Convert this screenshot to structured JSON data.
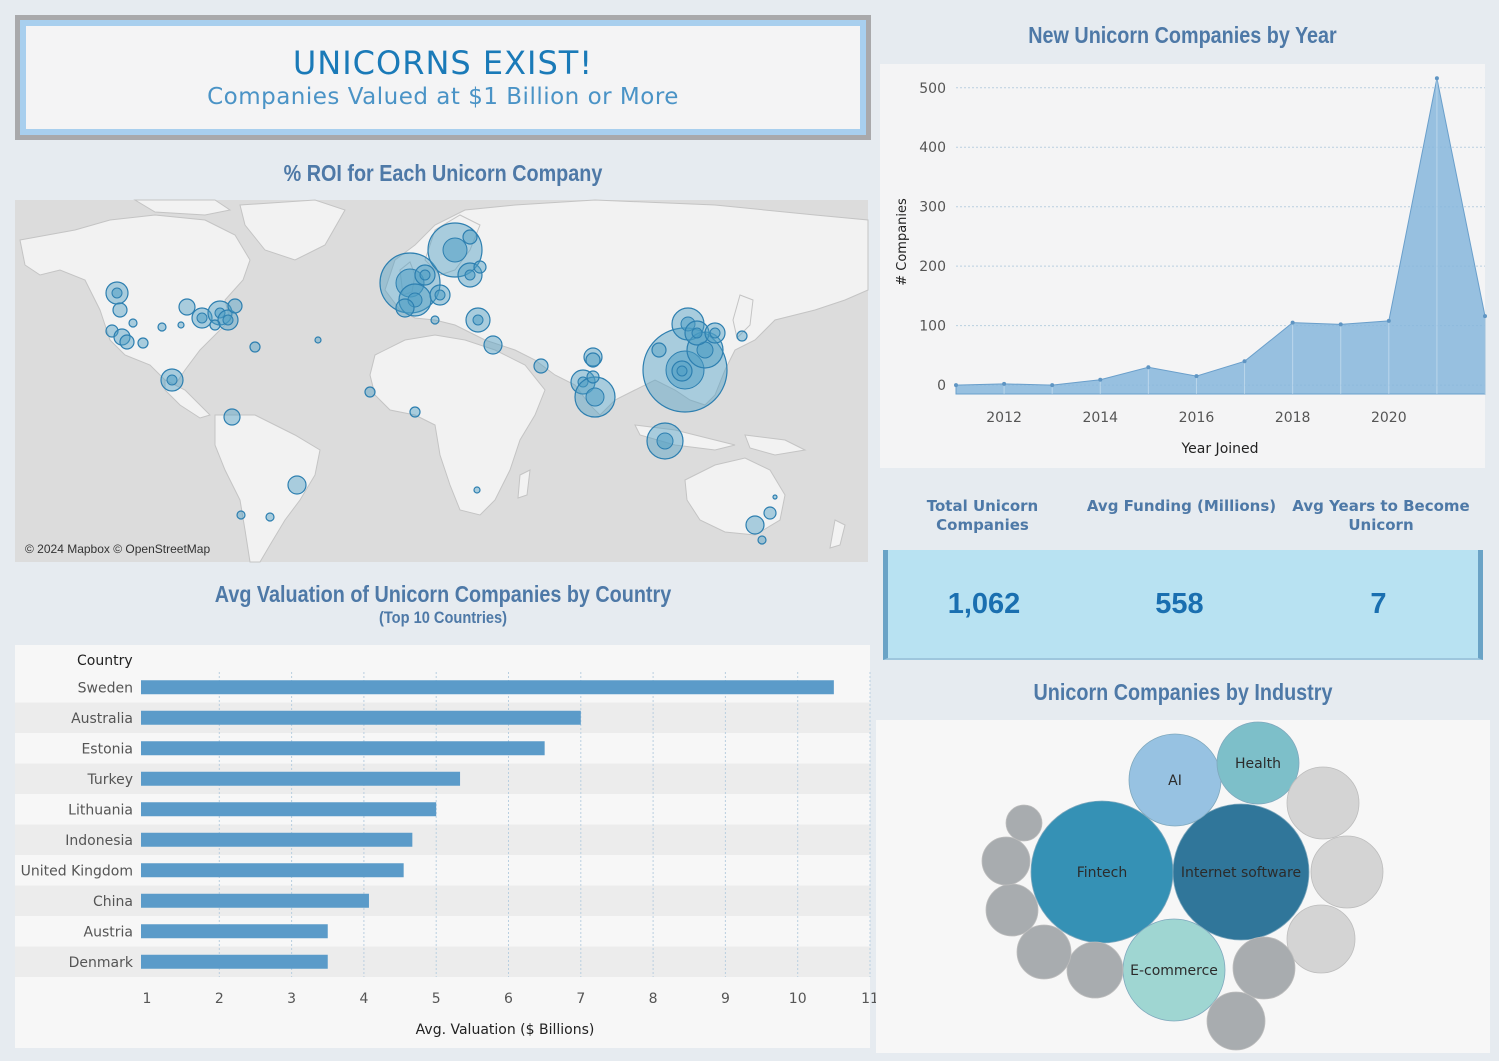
{
  "header": {
    "title": "UNICORNS EXIST!",
    "subtitle": "Companies Valued at $1 Billion or More"
  },
  "map": {
    "title": "% ROI for  Each Unicorn Company",
    "credit": "© 2024 Mapbox © OpenStreetMap"
  },
  "bar": {
    "title": "Avg Valuation of Unicorn Companies by Country",
    "subtitle": "(Top 10 Countries)"
  },
  "area": {
    "title": "New Unicorn Companies by Year"
  },
  "kpis": {
    "total_label": "Total Unicorn Companies",
    "total_value": "1,062",
    "funding_label": "Avg Funding (Millions)",
    "funding_value": "558",
    "years_label": "Avg Years to Become Unicorn",
    "years_value": "7"
  },
  "bubble": {
    "title": "Unicorn Companies by Industry"
  },
  "chart_data": [
    {
      "type": "bar",
      "orientation": "horizontal",
      "column_header": "Country",
      "categories": [
        "Sweden",
        "Australia",
        "Estonia",
        "Turkey",
        "Lithuania",
        "Indonesia",
        "United Kingdom",
        "China",
        "Austria",
        "Denmark"
      ],
      "values": [
        10.5,
        7.0,
        6.5,
        5.33,
        5.0,
        4.67,
        4.55,
        4.07,
        3.5,
        3.5
      ],
      "xlabel": "Avg. Valuation ($ Billions)",
      "xlim": [
        1,
        11
      ],
      "xticks": [
        1,
        2,
        3,
        4,
        5,
        6,
        7,
        8,
        9,
        10,
        11
      ],
      "color": "#5b9bc9"
    },
    {
      "type": "area",
      "x": [
        2011,
        2012,
        2013,
        2014,
        2015,
        2016,
        2017,
        2018,
        2019,
        2020,
        2021,
        2022
      ],
      "values": [
        0,
        2,
        0,
        9,
        30,
        15,
        40,
        105,
        102,
        108,
        516,
        116
      ],
      "xlabel": "Year Joined",
      "ylabel": "# Companies",
      "xticks": [
        2012,
        2014,
        2016,
        2018,
        2020
      ],
      "yticks": [
        0,
        100,
        200,
        300,
        400,
        500
      ],
      "ylim": [
        -15,
        540
      ],
      "color": "#86b6dc"
    },
    {
      "type": "packed-bubble",
      "labeled": [
        {
          "label": "Fintech",
          "color": "#3591b5"
        },
        {
          "label": "Internet software",
          "color": "#30769a"
        },
        {
          "label": "E-commerce",
          "color": "#9fd6d2"
        },
        {
          "label": "AI",
          "color": "#97c2e2"
        },
        {
          "label": "Health",
          "color": "#7dbfc9"
        }
      ],
      "unlabeled_colors": [
        "#d4d4d4",
        "#a8acaf"
      ]
    }
  ]
}
